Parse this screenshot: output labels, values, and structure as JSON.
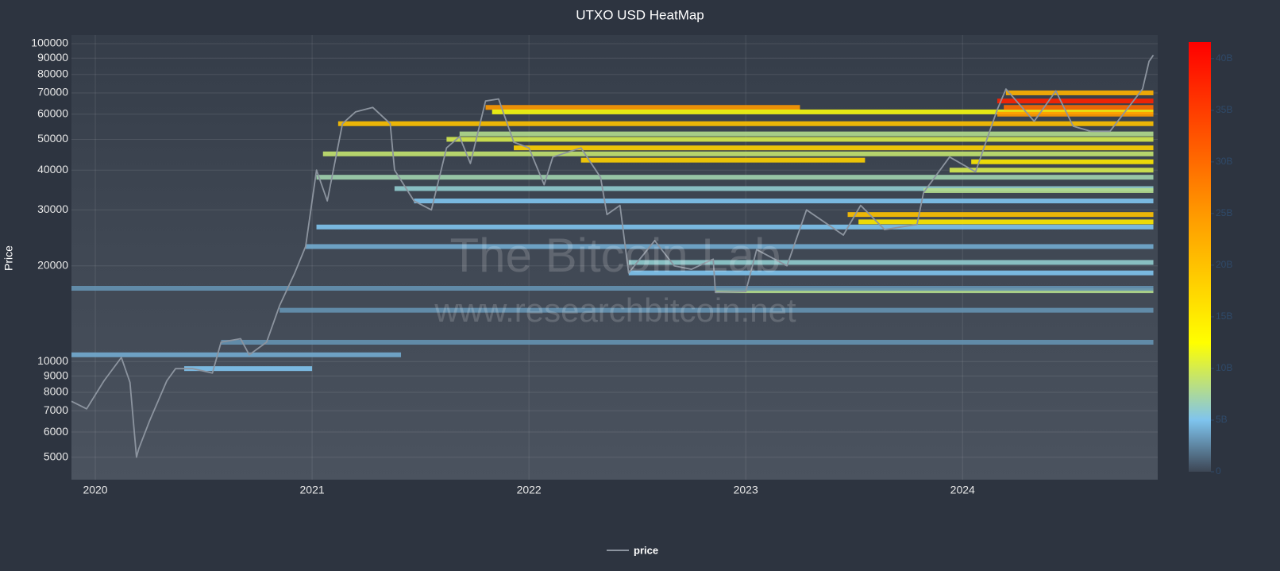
{
  "chart_data": {
    "type": "heatmap",
    "title": "UTXO USD HeatMap",
    "y_label": "Price",
    "watermark": [
      "The Bitcoin Lab",
      "www.researchbitcoin.net"
    ],
    "log_y": true,
    "grid": true,
    "xlim": [
      2019.89,
      2024.9
    ],
    "xticks": [
      2020,
      2021,
      2022,
      2023,
      2024
    ],
    "ylim": [
      4250,
      106500
    ],
    "yticks": [
      5000,
      6000,
      7000,
      8000,
      9000,
      10000,
      20000,
      30000,
      40000,
      50000,
      60000,
      70000,
      80000,
      90000,
      100000
    ],
    "zlim": [
      0,
      41600000000
    ],
    "zticks": [
      {
        "value": 0,
        "label": "0"
      },
      {
        "value": 5000000000,
        "label": "5B"
      },
      {
        "value": 10000000000,
        "label": "10B"
      },
      {
        "value": 15000000000,
        "label": "15B"
      },
      {
        "value": 20000000000,
        "label": "20B"
      },
      {
        "value": 25000000000,
        "label": "25B"
      },
      {
        "value": 30000000000,
        "label": "30B"
      },
      {
        "value": 35000000000,
        "label": "35B"
      },
      {
        "value": 40000000000,
        "label": "40B"
      }
    ],
    "colorscale": [
      [
        0,
        "#3d4654"
      ],
      [
        0.12,
        "#7fc4ee"
      ],
      [
        0.3,
        "#ffff00"
      ],
      [
        0.6,
        "#ff9900"
      ],
      [
        1,
        "#ff0000"
      ]
    ],
    "bands": {
      "x0": [
        2021.12,
        2021.8,
        2021.83,
        2021.93,
        2022.24,
        2023.47,
        2023.52,
        2024.16,
        2024.19,
        2024.2,
        2024.16,
        2024.04,
        2022.86,
        2022.46,
        2022.46,
        2020.97,
        2021.02,
        2021.02,
        2021.38,
        2021.47,
        2021.62,
        2021.68,
        2019.89,
        2019.89,
        2020.41,
        2020.58,
        2020.85,
        2021.05,
        2023.82,
        2023.94
      ],
      "x1": [
        2024.88,
        2023.25,
        2024.88,
        2024.88,
        2023.55,
        2024.88,
        2024.88,
        2024.88,
        2024.88,
        2024.88,
        2024.88,
        2024.88,
        2024.88,
        2024.88,
        2024.88,
        2024.88,
        2024.88,
        2024.88,
        2024.88,
        2024.88,
        2024.88,
        2024.88,
        2024.88,
        2021.41,
        2021.0,
        2024.88,
        2024.88,
        2024.88,
        2024.88,
        2024.88
      ],
      "y": [
        56000,
        63000,
        61000,
        47000,
        43000,
        29000,
        27500,
        66000,
        63000,
        70000,
        60000,
        42500,
        16700,
        20500,
        19000,
        23000,
        26500,
        38000,
        35000,
        32000,
        50000,
        52000,
        17000,
        10500,
        9500,
        11500,
        14500,
        45000,
        34500,
        40000
      ],
      "z": [
        20000000000,
        25000000000,
        12000000000,
        18000000000,
        18000000000,
        20000000000,
        15000000000,
        38000000000,
        30000000000,
        22000000000,
        25000000000,
        15000000000,
        8000000000,
        6000000000,
        5000000000,
        4000000000,
        5000000000,
        7000000000,
        6000000000,
        5000000000,
        10000000000,
        8000000000,
        3000000000,
        4000000000,
        5000000000,
        3000000000,
        3000000000,
        9000000000,
        8000000000,
        10000000000
      ]
    },
    "series": [
      {
        "name": "price",
        "color": "#8c949f",
        "x": [
          2019.89,
          2019.96,
          2020.04,
          2020.12,
          2020.16,
          2020.19,
          2020.2,
          2020.25,
          2020.33,
          2020.37,
          2020.45,
          2020.54,
          2020.58,
          2020.67,
          2020.71,
          2020.79,
          2020.85,
          2020.92,
          2020.97,
          2021.02,
          2021.07,
          2021.14,
          2021.2,
          2021.28,
          2021.36,
          2021.38,
          2021.47,
          2021.55,
          2021.62,
          2021.68,
          2021.73,
          2021.8,
          2021.86,
          2021.93,
          2022.0,
          2022.07,
          2022.11,
          2022.24,
          2022.33,
          2022.36,
          2022.42,
          2022.46,
          2022.58,
          2022.67,
          2022.75,
          2022.85,
          2022.86,
          2023.0,
          2023.05,
          2023.19,
          2023.28,
          2023.45,
          2023.53,
          2023.64,
          2023.79,
          2023.82,
          2023.94,
          2024.06,
          2024.16,
          2024.2,
          2024.33,
          2024.43,
          2024.51,
          2024.59,
          2024.68,
          2024.83,
          2024.86,
          2024.88
        ],
        "values": [
          7500,
          7100,
          8700,
          10300,
          8600,
          5000,
          5300,
          6500,
          8700,
          9500,
          9500,
          9200,
          11500,
          11800,
          10500,
          11500,
          15000,
          19000,
          23000,
          40000,
          32000,
          56000,
          61000,
          63000,
          56000,
          40000,
          32000,
          30000,
          47000,
          51000,
          42000,
          66000,
          67000,
          49000,
          47000,
          36000,
          44000,
          47000,
          38000,
          29000,
          31000,
          19000,
          24000,
          20000,
          19500,
          21000,
          16500,
          16600,
          22500,
          20000,
          30000,
          25000,
          31000,
          26000,
          27000,
          34000,
          44000,
          39500,
          62000,
          72000,
          57000,
          71000,
          55000,
          53000,
          53000,
          72000,
          88000,
          92000
        ]
      }
    ]
  }
}
